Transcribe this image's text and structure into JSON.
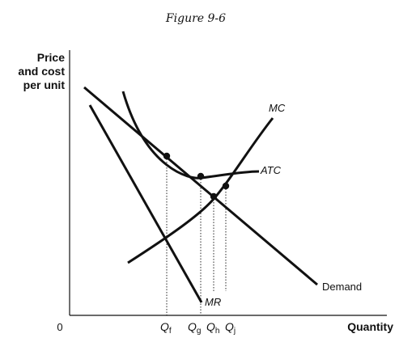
{
  "figure": {
    "caption": "Figure 9-6",
    "y_axis_label": [
      "Price",
      "and cost",
      "per unit"
    ],
    "x_axis_label": "Quantity",
    "origin_label": "0",
    "curves": {
      "mc": "MC",
      "atc": "ATC",
      "mr": "MR",
      "demand": "Demand"
    },
    "quantity_markers": [
      {
        "main": "Q",
        "sub": "f"
      },
      {
        "main": "Q",
        "sub": "g"
      },
      {
        "main": "Q",
        "sub": "h"
      },
      {
        "main": "Q",
        "sub": "j"
      }
    ]
  },
  "colors": {
    "line": "#111111",
    "background": "#ffffff"
  }
}
